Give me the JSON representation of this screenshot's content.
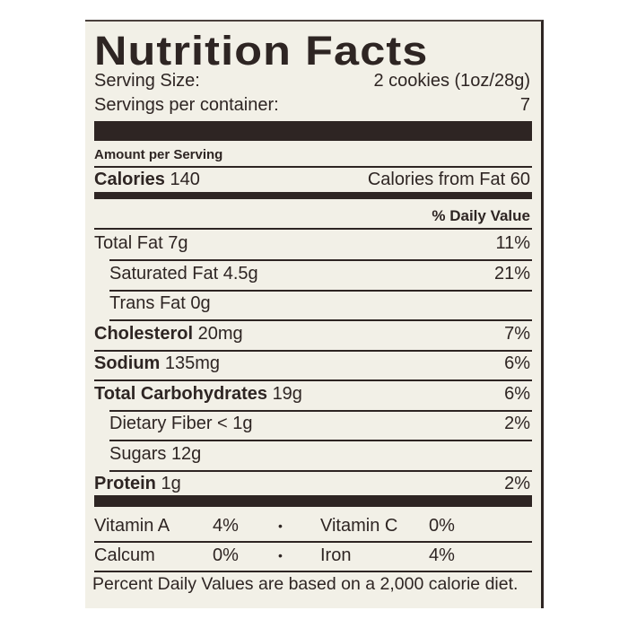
{
  "title": "Nutrition Facts",
  "serving": {
    "size_label": "Serving Size:",
    "size_value": "2 cookies (1oz/28g)",
    "per_container_label": "Servings per container:",
    "per_container_value": "7"
  },
  "amount_per_serving": "Amount per Serving",
  "calories": {
    "label": "Calories",
    "value": "140",
    "from_fat": "Calories from Fat 60"
  },
  "daily_value_header": "% Daily Value",
  "nutrients": [
    {
      "name": "Total Fat",
      "amount": "7g",
      "dv": "11%",
      "bold": false,
      "indent": false
    },
    {
      "name": "Saturated Fat",
      "amount": "4.5g",
      "dv": "21%",
      "bold": false,
      "indent": true
    },
    {
      "name": "Trans Fat",
      "amount": "0g",
      "dv": "",
      "bold": false,
      "indent": true
    },
    {
      "name": "Cholesterol",
      "amount": "20mg",
      "dv": "7%",
      "bold": true,
      "indent": false
    },
    {
      "name": "Sodium",
      "amount": "135mg",
      "dv": "6%",
      "bold": true,
      "indent": false
    },
    {
      "name": "Total Carbohydrates",
      "amount": "19g",
      "dv": "6%",
      "bold": true,
      "indent": false
    },
    {
      "name": "Dietary Fiber",
      "amount": "< 1g",
      "dv": "2%",
      "bold": false,
      "indent": true
    },
    {
      "name": "Sugars",
      "amount": "12g",
      "dv": "",
      "bold": false,
      "indent": true
    },
    {
      "name": "Protein",
      "amount": "1g",
      "dv": "2%",
      "bold": true,
      "indent": false
    }
  ],
  "vitamins": [
    {
      "name": "Vitamin A",
      "dv": "4%"
    },
    {
      "name": "Vitamin C",
      "dv": "0%"
    },
    {
      "name": "Calcum",
      "dv": "0%"
    },
    {
      "name": "Iron",
      "dv": "4%"
    }
  ],
  "separator": "•",
  "footnote": "Percent Daily Values are based on a 2,000 calorie diet.",
  "colors": {
    "ink": "#2e2523",
    "paper": "#f2f0e7"
  }
}
